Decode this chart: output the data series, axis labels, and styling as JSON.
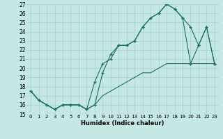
{
  "xlabel": "Humidex (Indice chaleur)",
  "xlim": [
    -0.5,
    23.5
  ],
  "ylim": [
    15,
    27
  ],
  "xticks": [
    0,
    1,
    2,
    3,
    4,
    5,
    6,
    7,
    8,
    9,
    10,
    11,
    12,
    13,
    14,
    15,
    16,
    17,
    18,
    19,
    20,
    21,
    22,
    23
  ],
  "yticks": [
    15,
    16,
    17,
    18,
    19,
    20,
    21,
    22,
    23,
    24,
    25,
    26,
    27
  ],
  "bg_color": "#c5e8e5",
  "line_color": "#1a6e64",
  "grid_color": "#aad4d0",
  "line1_y": [
    17.5,
    16.5,
    16.0,
    15.5,
    16.0,
    16.0,
    16.0,
    15.5,
    18.5,
    20.5,
    21.0,
    22.5,
    22.5,
    23.0,
    24.5,
    25.5,
    26.0,
    27.0,
    26.5,
    25.5,
    24.5,
    22.5,
    24.5,
    20.5
  ],
  "line2_y": [
    17.5,
    16.5,
    16.0,
    15.5,
    16.0,
    16.0,
    16.0,
    15.5,
    16.0,
    19.5,
    21.5,
    22.5,
    22.5,
    23.0,
    24.5,
    25.5,
    26.0,
    27.0,
    26.5,
    25.5,
    20.5,
    22.5,
    24.5,
    20.5
  ],
  "line3_y": [
    17.5,
    16.5,
    16.0,
    15.5,
    16.0,
    16.0,
    16.0,
    15.5,
    16.0,
    17.0,
    17.5,
    18.0,
    18.5,
    19.0,
    19.5,
    19.5,
    20.0,
    20.5,
    20.5,
    20.5,
    20.5,
    20.5,
    20.5,
    20.5
  ]
}
